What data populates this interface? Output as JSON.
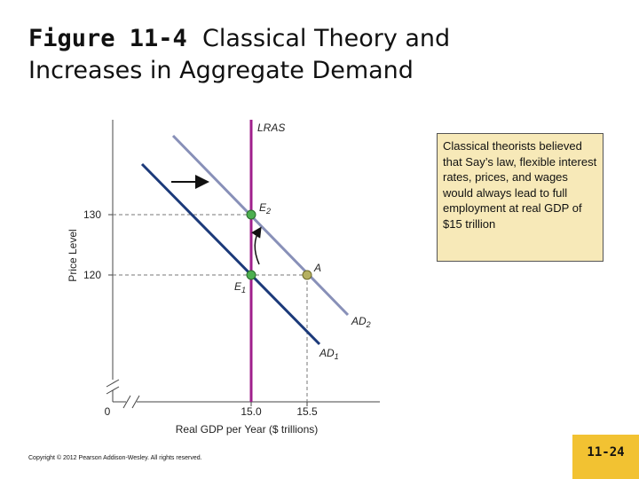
{
  "title": {
    "figure": "Figure 11-4",
    "text": "Classical Theory and Increases in Aggregate Demand"
  },
  "diagram": {
    "y_axis_label": "Price Level",
    "x_axis_label": "Real GDP per Year ($ trillions)",
    "origin": "0",
    "y_ticks": [
      "130",
      "120"
    ],
    "x_ticks": [
      "15.0",
      "15.5"
    ],
    "curves": [
      {
        "name": "LRAS"
      },
      {
        "name": "AD",
        "sub": "2"
      },
      {
        "name": "AD",
        "sub": "1"
      }
    ],
    "points": [
      {
        "name": "E",
        "sub": "2"
      },
      {
        "name": "E",
        "sub": "1"
      },
      {
        "name": "A"
      }
    ]
  },
  "callout": "Classical theorists believed that Say’s law, flexible interest rates, prices, and wages would always lead to full employment at real GDP of $15 trillion",
  "footer": {
    "copyright": "Copyright © 2012 Pearson Addison-Wesley. All rights reserved.",
    "page": "11-24"
  }
}
